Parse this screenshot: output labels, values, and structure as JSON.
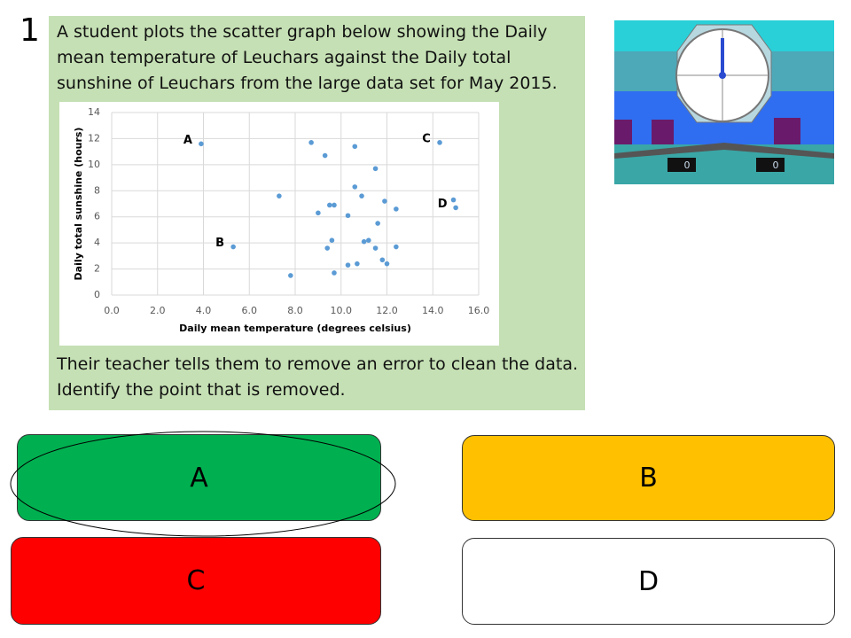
{
  "question": {
    "number": "1",
    "text": "A student plots the scatter graph below showing the Daily mean temperature of Leuchars against the Daily total sunshine of Leuchars from the large data set for May 2015.",
    "followup": "Their teacher tells them to remove an error to clean the data. Identify the point that is removed."
  },
  "chart_data": {
    "type": "scatter",
    "x_label": "Daily mean temperature (degrees celsius)",
    "y_label": "Daily total sunshine (hours)",
    "color": "#5b9bd5",
    "grid": true,
    "x": [
      3.9,
      5.3,
      7.3,
      7.8,
      8.7,
      9.0,
      9.3,
      9.4,
      9.5,
      9.7,
      9.6,
      9.7,
      10.3,
      10.3,
      10.6,
      10.6,
      10.7,
      10.9,
      11.0,
      11.2,
      11.5,
      11.5,
      11.6,
      11.8,
      11.9,
      12.0,
      12.4,
      12.4,
      14.3,
      14.9,
      15.0
    ],
    "values": [
      11.6,
      3.7,
      7.6,
      1.5,
      11.7,
      6.3,
      10.7,
      3.6,
      6.9,
      6.9,
      4.2,
      1.7,
      6.1,
      2.3,
      8.3,
      11.4,
      2.4,
      7.6,
      4.1,
      4.2,
      3.6,
      9.7,
      5.5,
      2.7,
      7.2,
      2.4,
      6.6,
      3.7,
      11.7,
      7.3,
      6.7
    ],
    "point_labels": [
      "A",
      "B",
      null,
      null,
      null,
      null,
      null,
      null,
      null,
      null,
      null,
      null,
      null,
      null,
      null,
      null,
      null,
      null,
      null,
      null,
      null,
      null,
      null,
      null,
      null,
      null,
      null,
      null,
      "C",
      null,
      "D"
    ],
    "xlim": [
      0,
      16
    ],
    "ylim": [
      0,
      14
    ],
    "xticks": [
      {
        "value": 0,
        "label": "0.0"
      },
      {
        "value": 2,
        "label": "2.0"
      },
      {
        "value": 4,
        "label": "4.0"
      },
      {
        "value": 6,
        "label": "6.0"
      },
      {
        "value": 8,
        "label": "8.0"
      },
      {
        "value": 10,
        "label": "10.0"
      },
      {
        "value": 12,
        "label": "12.0"
      },
      {
        "value": 14,
        "label": "14.0"
      },
      {
        "value": 16,
        "label": "16.0"
      }
    ],
    "yticks": [
      0,
      2,
      4,
      6,
      8,
      10,
      12,
      14
    ]
  },
  "answers": [
    "A",
    "B",
    "C",
    "D"
  ],
  "timer": {
    "scores": [
      "0",
      "0"
    ]
  }
}
